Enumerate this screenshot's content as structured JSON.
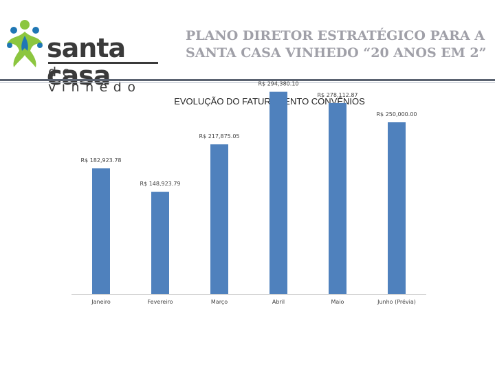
{
  "header": {
    "logo_main": "santa casa",
    "logo_sub": "de vinhedo",
    "title_line1": "PLANO DIRETOR ESTRATÉGICO PARA A",
    "title_line2": "SANTA CASA VINHEDO “20 ANOS EM 2”"
  },
  "colors": {
    "bar": "#4f81bd",
    "logo_green": "#8cc63f",
    "logo_blue": "#1f77b4",
    "title_gray": "#a0a0a8",
    "rule_dark": "#5a6270"
  },
  "chart_data": {
    "type": "bar",
    "title": "EVOLUÇÃO DO FATURAMENTO CONVÊNIOS",
    "categories": [
      "Janeiro",
      "Fevereiro",
      "Março",
      "Abril",
      "Maio",
      "Junho (Prévia)"
    ],
    "values": [
      182923.78,
      148923.79,
      217875.05,
      294380.1,
      278112.87,
      250000.0
    ],
    "data_labels": [
      "R$ 182,923.78",
      "R$ 148,923.79",
      "R$ 217,875.05",
      "R$ 294,380.10",
      "R$ 278,112.87",
      "R$ 250,000.00"
    ],
    "xlabel": "",
    "ylabel": "",
    "ylim": [
      0,
      300000
    ],
    "grid": false,
    "legend": "none"
  }
}
